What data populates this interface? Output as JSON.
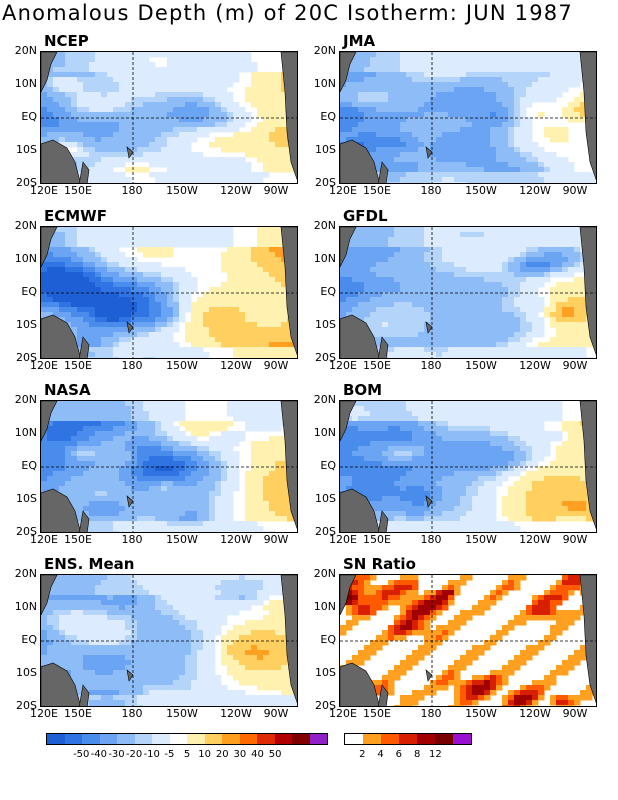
{
  "title": "Anomalous Depth (m) of 20C Isotherm: JUN 1987",
  "panels": [
    {
      "label": "NCEP",
      "kind": "anom",
      "seed": 11,
      "warm": 1.0
    },
    {
      "label": "JMA",
      "kind": "anom",
      "seed": 23,
      "warm": 0.7
    },
    {
      "label": "ECMWF",
      "kind": "anom",
      "seed": 37,
      "warm": 1.2
    },
    {
      "label": "GFDL",
      "kind": "anom",
      "seed": 41,
      "warm": 0.8
    },
    {
      "label": "NASA",
      "kind": "anom",
      "seed": 53,
      "warm": 0.9
    },
    {
      "label": "BOM",
      "kind": "anom",
      "seed": 67,
      "warm": 1.0
    },
    {
      "label": "ENS. Mean",
      "kind": "anom",
      "seed": 79,
      "warm": 0.8
    },
    {
      "label": "SN Ratio",
      "kind": "sn",
      "seed": 97,
      "warm": 1.0
    }
  ],
  "lat_labels": [
    "20N",
    "10N",
    "EQ",
    "10S",
    "20S"
  ],
  "lon_labels": [
    "120E",
    "150E",
    "180",
    "150W",
    "120W",
    "90W"
  ],
  "anomaly_colorbar": {
    "colors": [
      "#1f5fd6",
      "#2f74e2",
      "#4a8cec",
      "#6aa4f2",
      "#8ebcf6",
      "#b4d4fa",
      "#dcecfe",
      "#ffffff",
      "#fff2b0",
      "#ffd060",
      "#ffa020",
      "#ff6a00",
      "#e02a00",
      "#b00000",
      "#800000",
      "#9020c8"
    ],
    "labels": [
      "-50",
      "-40",
      "-30",
      "-20",
      "-10",
      "-5",
      "5",
      "10",
      "20",
      "30",
      "40",
      "50"
    ]
  },
  "sn_colorbar": {
    "colors": [
      "#ffffff",
      "#ffa020",
      "#ff5a00",
      "#d82000",
      "#a00000",
      "#780000",
      "#9a10d0"
    ],
    "labels": [
      "2",
      "4",
      "6",
      "8",
      "12"
    ]
  },
  "land_color": "#666666"
}
